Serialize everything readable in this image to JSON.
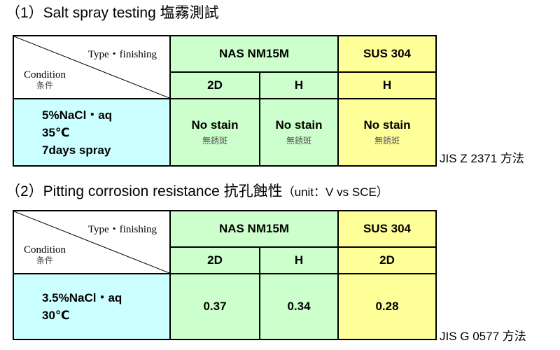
{
  "section1": {
    "heading": "（1）Salt spray testing 塩霧測試",
    "type_label": "Type・finishing",
    "condition_label": "Condition",
    "condition_label_jp": "条件",
    "materials": [
      {
        "name": "NAS NM15M",
        "finishes": [
          "2D",
          "H"
        ],
        "color": "#ccffcc"
      },
      {
        "name": "SUS 304",
        "finishes": [
          "H"
        ],
        "color": "#ffff99"
      }
    ],
    "condition_lines": [
      "5%NaCl・aq",
      "35℃",
      "7days spray"
    ],
    "results": [
      {
        "main": "No stain",
        "sub": "無銹斑"
      },
      {
        "main": "No stain",
        "sub": "無銹斑"
      },
      {
        "main": "No stain",
        "sub": "無銹斑"
      }
    ],
    "standard": "JIS Z 2371 方法"
  },
  "section2": {
    "heading": "（2）Pitting corrosion resistance 抗孔蝕性",
    "unit": "（unit：V vs SCE）",
    "type_label": "Type・finishing",
    "condition_label": "Condition",
    "condition_label_jp": "条件",
    "materials": [
      {
        "name": "NAS NM15M",
        "finishes": [
          "2D",
          "H"
        ],
        "color": "#ccffcc"
      },
      {
        "name": "SUS 304",
        "finishes": [
          "2D"
        ],
        "color": "#ffff99"
      }
    ],
    "condition_lines": [
      "3.5%NaCl・aq",
      "30℃"
    ],
    "values": [
      "0.37",
      "0.34",
      "0.28"
    ],
    "standard": "JIS G 0577 方法"
  }
}
